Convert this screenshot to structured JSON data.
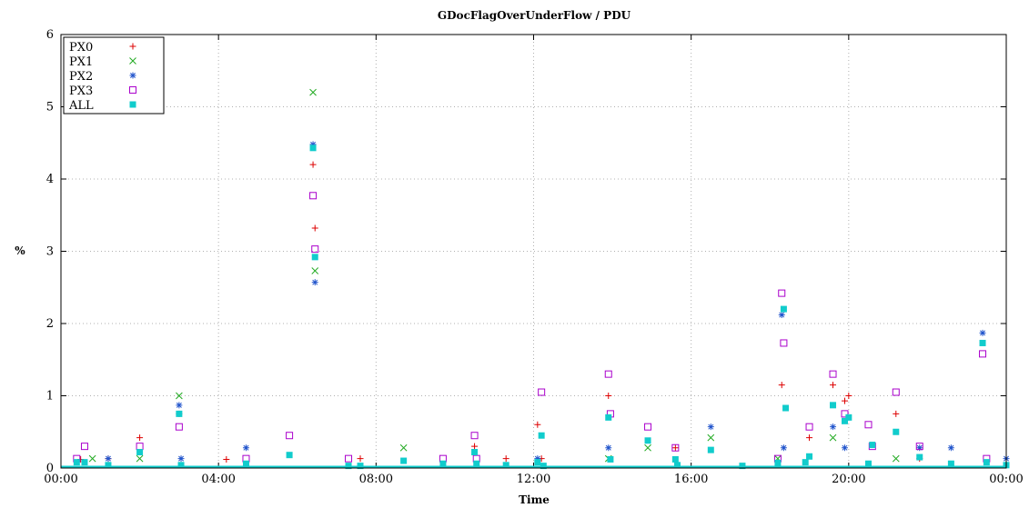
{
  "chart_data": {
    "type": "scatter",
    "title": "GDocFlagOverUnderFlow / PDU",
    "xlabel": "Time",
    "ylabel": "%",
    "x_unit": "time of day (hours)",
    "xlim": [
      0,
      24
    ],
    "ylim": [
      0,
      6
    ],
    "x_ticks": [
      {
        "value": 0,
        "label": "00:00"
      },
      {
        "value": 4,
        "label": "04:00"
      },
      {
        "value": 8,
        "label": "08:00"
      },
      {
        "value": 12,
        "label": "12:00"
      },
      {
        "value": 16,
        "label": "16:00"
      },
      {
        "value": 20,
        "label": "20:00"
      },
      {
        "value": 24,
        "label": "00:00"
      }
    ],
    "y_ticks": [
      {
        "value": 0,
        "label": "0"
      },
      {
        "value": 1,
        "label": "1"
      },
      {
        "value": 2,
        "label": "2"
      },
      {
        "value": 3,
        "label": "3"
      },
      {
        "value": 4,
        "label": "4"
      },
      {
        "value": 5,
        "label": "5"
      },
      {
        "value": 6,
        "label": "6"
      }
    ],
    "grid": true,
    "legend_position": "top-left",
    "series": [
      {
        "name": "PX0",
        "marker": "plus",
        "color": "#dd0000",
        "x": [
          0.5,
          1.2,
          2.0,
          3.0,
          4.2,
          6.4,
          6.45,
          7.6,
          10.5,
          11.3,
          12.1,
          12.2,
          13.9,
          15.6,
          18.3,
          19.0,
          19.6,
          19.9,
          20.0,
          21.2,
          21.8
        ],
        "y": [
          0.12,
          0.13,
          0.42,
          0.75,
          0.12,
          4.2,
          3.32,
          0.13,
          0.3,
          0.13,
          0.6,
          0.13,
          1.0,
          0.28,
          1.15,
          0.42,
          1.15,
          0.93,
          1.0,
          0.75,
          0.13
        ]
      },
      {
        "name": "PX1",
        "marker": "x",
        "color": "#22aa22",
        "x": [
          0.8,
          2.0,
          3.0,
          6.4,
          6.45,
          8.7,
          13.9,
          14.9,
          16.5,
          18.2,
          19.6,
          21.2
        ],
        "y": [
          0.13,
          0.13,
          1.0,
          5.2,
          2.73,
          0.28,
          0.13,
          0.28,
          0.42,
          0.13,
          0.42,
          0.13
        ]
      },
      {
        "name": "PX2",
        "marker": "star",
        "color": "#2255cc",
        "x": [
          1.2,
          3.0,
          3.05,
          4.7,
          6.4,
          6.45,
          12.1,
          13.9,
          16.5,
          18.3,
          18.35,
          19.6,
          19.9,
          21.8,
          22.6,
          23.4,
          24.0
        ],
        "y": [
          0.13,
          0.87,
          0.13,
          0.28,
          4.48,
          2.57,
          0.13,
          0.28,
          0.57,
          2.12,
          0.28,
          0.57,
          0.28,
          0.28,
          0.28,
          1.87,
          0.13
        ]
      },
      {
        "name": "PX3",
        "marker": "square",
        "color": "#aa00cc",
        "x": [
          0.4,
          0.6,
          2.0,
          3.0,
          4.7,
          5.8,
          6.4,
          6.45,
          7.3,
          9.7,
          10.5,
          10.55,
          12.2,
          13.9,
          13.95,
          14.9,
          15.6,
          18.2,
          18.3,
          18.35,
          19.0,
          19.6,
          19.9,
          20.5,
          20.6,
          21.2,
          21.8,
          23.4,
          23.5
        ],
        "y": [
          0.13,
          0.3,
          0.3,
          0.57,
          0.13,
          0.45,
          3.77,
          3.03,
          0.13,
          0.13,
          0.45,
          0.13,
          1.05,
          1.3,
          0.75,
          0.57,
          0.28,
          0.13,
          2.42,
          1.73,
          0.57,
          1.3,
          0.75,
          0.6,
          0.3,
          1.05,
          0.3,
          1.58,
          0.13
        ]
      },
      {
        "name": "ALL",
        "marker": "filled-square",
        "color": "#11cccc",
        "x": [
          0.4,
          0.6,
          1.2,
          2.0,
          3.0,
          3.05,
          4.7,
          5.8,
          6.4,
          6.45,
          7.3,
          7.6,
          8.7,
          9.7,
          10.5,
          10.55,
          11.3,
          12.1,
          12.2,
          12.25,
          13.9,
          13.95,
          14.9,
          15.6,
          15.65,
          16.5,
          17.3,
          18.2,
          18.35,
          18.4,
          18.9,
          19.0,
          19.6,
          19.9,
          20.0,
          20.5,
          20.6,
          21.2,
          21.8,
          22.6,
          23.4,
          23.5,
          24.0
        ],
        "y": [
          0.08,
          0.08,
          0.04,
          0.22,
          0.75,
          0.04,
          0.06,
          0.18,
          4.43,
          2.92,
          0.03,
          0.03,
          0.1,
          0.06,
          0.22,
          0.06,
          0.04,
          0.08,
          0.45,
          0.03,
          0.7,
          0.12,
          0.38,
          0.12,
          0.04,
          0.25,
          0.03,
          0.07,
          2.2,
          0.83,
          0.08,
          0.16,
          0.87,
          0.65,
          0.7,
          0.06,
          0.32,
          0.5,
          0.15,
          0.06,
          1.73,
          0.08,
          0.04
        ]
      }
    ]
  }
}
